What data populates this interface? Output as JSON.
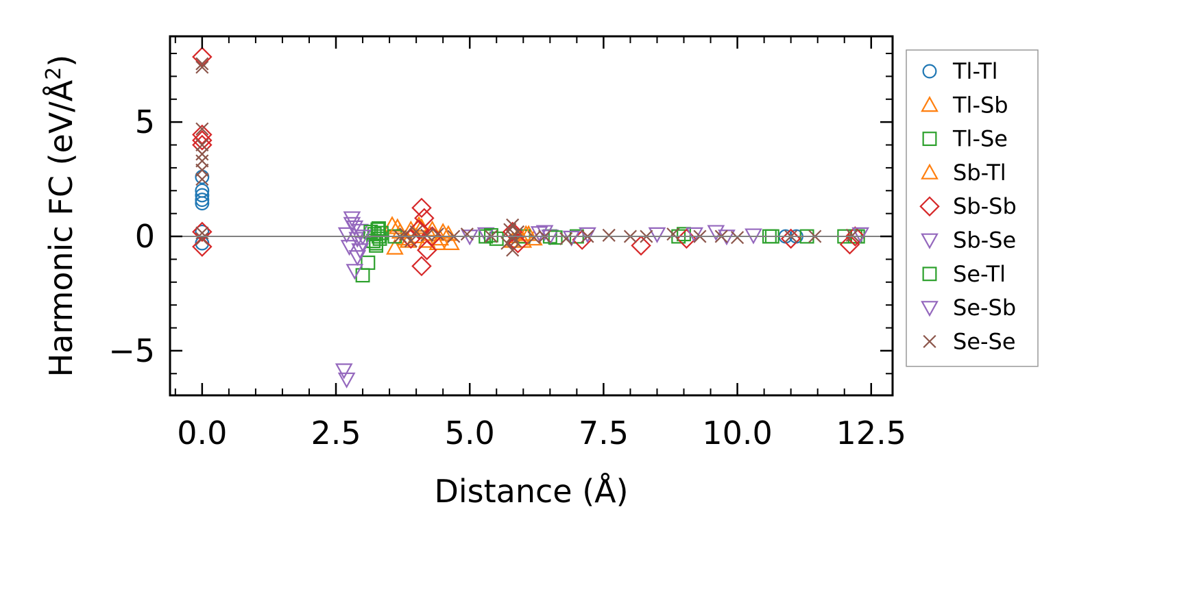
{
  "chart_data": {
    "type": "scatter",
    "xlabel": "Distance (Å)",
    "ylabel_main": "Harmonic FC (eV/Å",
    "ylabel_sup": "2",
    "ylabel_end": ")",
    "xlim": [
      -0.6,
      12.9
    ],
    "ylim": [
      -6.95,
      8.75
    ],
    "x_ticks": [
      0.0,
      2.5,
      5.0,
      7.5,
      10.0,
      12.5
    ],
    "x_tick_labels": [
      "0.0",
      "2.5",
      "5.0",
      "7.5",
      "10.0",
      "12.5"
    ],
    "y_ticks": [
      -5,
      0,
      5
    ],
    "y_tick_labels": [
      "−5",
      "0",
      "5"
    ],
    "zero_line": true,
    "grid": false,
    "legend_position": "outside-right",
    "series": [
      {
        "name": "Tl-Tl",
        "marker": "circle",
        "color": "#1f77b4",
        "points": [
          [
            0,
            2.6
          ],
          [
            0,
            2.0
          ],
          [
            0,
            1.8
          ],
          [
            0,
            1.6
          ],
          [
            0,
            1.45
          ],
          [
            0,
            0.2
          ],
          [
            0,
            -0.3
          ],
          [
            10.9,
            0.0
          ],
          [
            11.1,
            0.0
          ]
        ]
      },
      {
        "name": "Tl-Sb",
        "marker": "triangle-up",
        "color": "#ff7f0e",
        "points": [
          [
            3.55,
            0.5
          ],
          [
            3.6,
            -0.5
          ],
          [
            3.7,
            0.2
          ],
          [
            3.8,
            -0.1
          ],
          [
            3.9,
            0.3
          ],
          [
            4.0,
            0.0
          ],
          [
            4.1,
            0.4
          ],
          [
            4.2,
            -0.2
          ],
          [
            4.3,
            0.3
          ],
          [
            4.4,
            -0.3
          ],
          [
            4.5,
            0.2
          ],
          [
            4.6,
            0.1
          ],
          [
            4.65,
            -0.3
          ],
          [
            5.9,
            0.0
          ],
          [
            6.0,
            -0.2
          ],
          [
            6.1,
            0.1
          ]
        ]
      },
      {
        "name": "Tl-Se",
        "marker": "square",
        "color": "#2ca02c",
        "points": [
          [
            3.0,
            -1.7
          ],
          [
            3.1,
            -1.15
          ],
          [
            3.2,
            -0.2
          ],
          [
            3.22,
            0.1
          ],
          [
            3.25,
            -0.3
          ],
          [
            3.28,
            0.3
          ],
          [
            3.3,
            0.0
          ],
          [
            3.32,
            -0.1
          ],
          [
            3.35,
            0.15
          ],
          [
            3.6,
            0.0
          ],
          [
            5.3,
            0.0
          ],
          [
            5.5,
            -0.1
          ],
          [
            6.0,
            0.0
          ],
          [
            6.5,
            0.0
          ],
          [
            7.0,
            0.0
          ],
          [
            8.9,
            0.0
          ],
          [
            9.0,
            0.1
          ],
          [
            10.6,
            0.0
          ],
          [
            11.3,
            0.0
          ],
          [
            12.0,
            0.0
          ],
          [
            12.2,
            0.0
          ],
          [
            12.25,
            0.0
          ]
        ]
      },
      {
        "name": "Sb-Tl",
        "marker": "triangle-up",
        "color": "#ff7f0e",
        "points": [
          [
            3.65,
            0.4
          ],
          [
            3.85,
            -0.2
          ],
          [
            4.05,
            0.5
          ],
          [
            4.25,
            0.1
          ],
          [
            4.45,
            -0.1
          ],
          [
            5.8,
            -0.2
          ],
          [
            6.05,
            0.1
          ],
          [
            6.2,
            -0.1
          ]
        ]
      },
      {
        "name": "Sb-Sb",
        "marker": "diamond",
        "color": "#d62728",
        "points": [
          [
            0,
            7.85
          ],
          [
            0,
            4.45
          ],
          [
            0,
            4.2
          ],
          [
            0,
            4.0
          ],
          [
            0,
            0.2
          ],
          [
            0,
            -0.45
          ],
          [
            4.1,
            1.25
          ],
          [
            4.15,
            0.8
          ],
          [
            4.2,
            -0.6
          ],
          [
            4.1,
            -1.3
          ],
          [
            4.05,
            0.3
          ],
          [
            3.9,
            -0.1
          ],
          [
            4.3,
            0.0
          ],
          [
            5.8,
            0.2
          ],
          [
            5.9,
            -0.3
          ],
          [
            7.1,
            -0.15
          ],
          [
            8.2,
            -0.4
          ],
          [
            9.05,
            -0.1
          ],
          [
            11.0,
            -0.1
          ],
          [
            12.1,
            -0.35
          ],
          [
            12.2,
            0.0
          ]
        ]
      },
      {
        "name": "Sb-Se",
        "marker": "triangle-down",
        "color": "#9467bd",
        "points": [
          [
            2.65,
            -5.85
          ],
          [
            2.7,
            -6.25
          ],
          [
            2.7,
            0.1
          ],
          [
            2.75,
            -0.45
          ],
          [
            2.8,
            0.8
          ],
          [
            2.85,
            -1.5
          ],
          [
            2.85,
            0.4
          ],
          [
            2.9,
            -0.1
          ],
          [
            2.95,
            0.25
          ],
          [
            3.0,
            -0.3
          ],
          [
            5.0,
            0.0
          ],
          [
            5.3,
            0.1
          ],
          [
            6.3,
            0.15
          ],
          [
            6.5,
            0.0
          ],
          [
            6.9,
            -0.05
          ]
        ]
      },
      {
        "name": "Se-Tl",
        "marker": "square",
        "color": "#2ca02c",
        "points": [
          [
            3.15,
            0.2
          ],
          [
            3.25,
            -0.4
          ],
          [
            3.3,
            0.35
          ],
          [
            5.4,
            0.05
          ],
          [
            6.6,
            -0.05
          ],
          [
            10.65,
            0.0
          ]
        ]
      },
      {
        "name": "Se-Sb",
        "marker": "triangle-down",
        "color": "#9467bd",
        "points": [
          [
            2.8,
            0.55
          ],
          [
            2.9,
            -0.9
          ],
          [
            2.95,
            -0.6
          ],
          [
            3.0,
            0.0
          ],
          [
            6.4,
            0.2
          ],
          [
            7.2,
            0.1
          ],
          [
            8.5,
            0.1
          ],
          [
            9.2,
            0.1
          ],
          [
            9.6,
            0.2
          ],
          [
            9.8,
            0.0
          ],
          [
            10.3,
            0.05
          ],
          [
            12.3,
            0.1
          ]
        ]
      },
      {
        "name": "Se-Se",
        "marker": "x",
        "color": "#8c564b",
        "points": [
          [
            0,
            7.55
          ],
          [
            0,
            7.4
          ],
          [
            0,
            4.7
          ],
          [
            0,
            4.0
          ],
          [
            0,
            3.6
          ],
          [
            0,
            3.3
          ],
          [
            0,
            2.9
          ],
          [
            0,
            2.5
          ],
          [
            0,
            0.15
          ],
          [
            0,
            -0.1
          ],
          [
            3.7,
            0.0
          ],
          [
            3.8,
            0.1
          ],
          [
            3.9,
            -0.2
          ],
          [
            4.0,
            0.2
          ],
          [
            4.2,
            0.05
          ],
          [
            4.4,
            0.1
          ],
          [
            4.7,
            0.0
          ],
          [
            4.95,
            0.1
          ],
          [
            5.4,
            0.0
          ],
          [
            5.7,
            -0.3
          ],
          [
            5.75,
            0.3
          ],
          [
            5.8,
            0.5
          ],
          [
            5.8,
            0.0
          ],
          [
            5.8,
            -0.6
          ],
          [
            5.85,
            -0.2
          ],
          [
            5.9,
            0.2
          ],
          [
            6.2,
            -0.05
          ],
          [
            6.4,
            0.0
          ],
          [
            6.8,
            -0.1
          ],
          [
            7.2,
            0.0
          ],
          [
            7.6,
            0.05
          ],
          [
            8.0,
            0.0
          ],
          [
            8.3,
            0.0
          ],
          [
            8.8,
            0.1
          ],
          [
            9.3,
            0.0
          ],
          [
            9.7,
            0.0
          ],
          [
            10.0,
            -0.05
          ],
          [
            11.0,
            0.0
          ],
          [
            11.45,
            0.0
          ],
          [
            12.15,
            0.05
          ]
        ]
      }
    ]
  }
}
